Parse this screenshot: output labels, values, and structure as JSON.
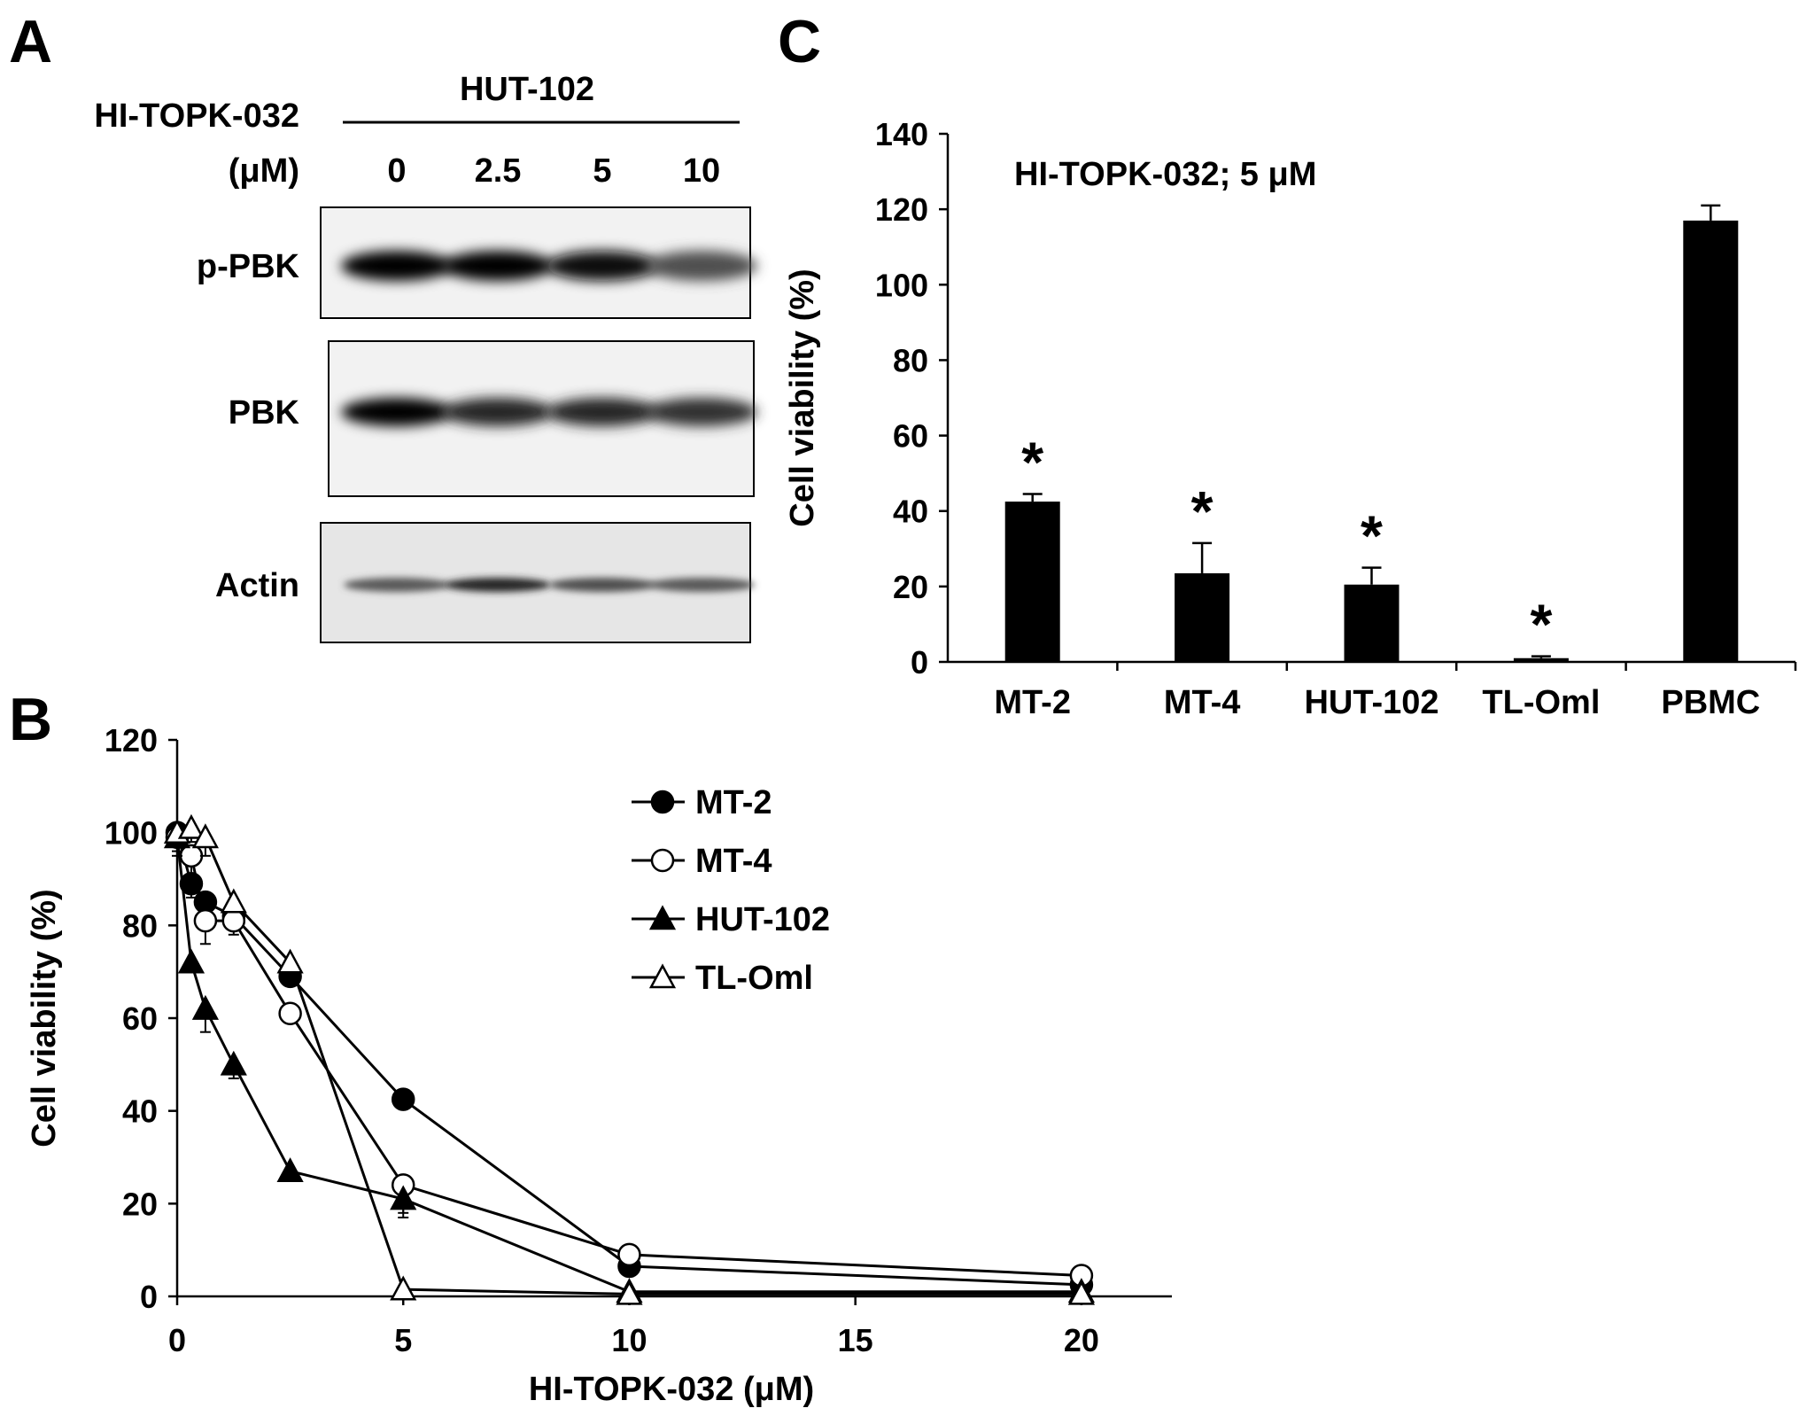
{
  "panel_a": {
    "letter": "A",
    "cell_line": "HUT-102",
    "treatment_label": "HI-TOPK-032",
    "unit_label": "(μM)",
    "doses": [
      "0",
      "2.5",
      "5",
      "10"
    ],
    "blots": [
      {
        "label": "p-PBK",
        "band_intensity": [
          1.0,
          1.0,
          0.95,
          0.6
        ]
      },
      {
        "label": "PBK",
        "band_intensity": [
          1.0,
          0.8,
          0.8,
          0.75
        ]
      },
      {
        "label": "Actin",
        "band_intensity": [
          0.55,
          0.8,
          0.6,
          0.55
        ]
      }
    ]
  },
  "panel_b": {
    "letter": "B"
  },
  "panel_c": {
    "letter": "C"
  },
  "chart_data": [
    {
      "type": "line",
      "xlabel": "HI-TOPK-032 (μM)",
      "ylabel": "Cell viability (%)",
      "xlim": [
        0,
        22
      ],
      "ylim": [
        0,
        120
      ],
      "xticks": [
        0,
        5,
        10,
        15,
        20
      ],
      "yticks": [
        0,
        20,
        40,
        60,
        80,
        100,
        120
      ],
      "legend": "right",
      "series": [
        {
          "name": "MT-2",
          "marker": "filled-circle",
          "x": [
            0,
            0.3125,
            0.625,
            1.25,
            2.5,
            5,
            10,
            20
          ],
          "y": [
            100,
            89,
            85,
            82,
            69,
            42.5,
            6.5,
            2.5
          ],
          "err": [
            2,
            3,
            3,
            3,
            2,
            1,
            1,
            0.5
          ]
        },
        {
          "name": "MT-4",
          "marker": "open-circle",
          "x": [
            0,
            0.3125,
            0.625,
            1.25,
            2.5,
            5,
            10,
            20
          ],
          "y": [
            99,
            95,
            81,
            81,
            61,
            24,
            9,
            4.5
          ],
          "err": [
            3,
            4,
            5,
            3,
            2,
            7,
            1,
            0.5
          ]
        },
        {
          "name": "HUT-102",
          "marker": "filled-triangle",
          "x": [
            0,
            0.3125,
            0.625,
            1.25,
            2.5,
            5,
            10,
            20
          ],
          "y": [
            99,
            72,
            62,
            50,
            27,
            21,
            1,
            1
          ],
          "err": [
            4,
            2,
            5,
            3,
            2,
            3,
            0.5,
            0.5
          ]
        },
        {
          "name": "TL-Oml",
          "marker": "open-triangle",
          "x": [
            0,
            0.3125,
            0.625,
            1.25,
            2.5,
            5,
            10,
            20
          ],
          "y": [
            100,
            101,
            99,
            85,
            72,
            1.5,
            0.5,
            0.5
          ],
          "err": [
            2,
            3,
            4,
            2,
            3,
            0.5,
            0.5,
            0.5
          ]
        }
      ]
    },
    {
      "type": "bar",
      "title": "HI-TOPK-032; 5 μM",
      "xlabel": "",
      "ylabel": "Cell viability (%)",
      "ylim": [
        0,
        140
      ],
      "yticks": [
        0,
        20,
        40,
        60,
        80,
        100,
        120,
        140
      ],
      "categories": [
        "MT-2",
        "MT-4",
        "HUT-102",
        "TL-Oml",
        "PBMC"
      ],
      "values": [
        42.5,
        23.5,
        20.5,
        1,
        117
      ],
      "errors": [
        2,
        8,
        4.5,
        0.5,
        4
      ],
      "annotations": [
        "*",
        "*",
        "*",
        "*",
        ""
      ],
      "color": "#000000"
    }
  ]
}
